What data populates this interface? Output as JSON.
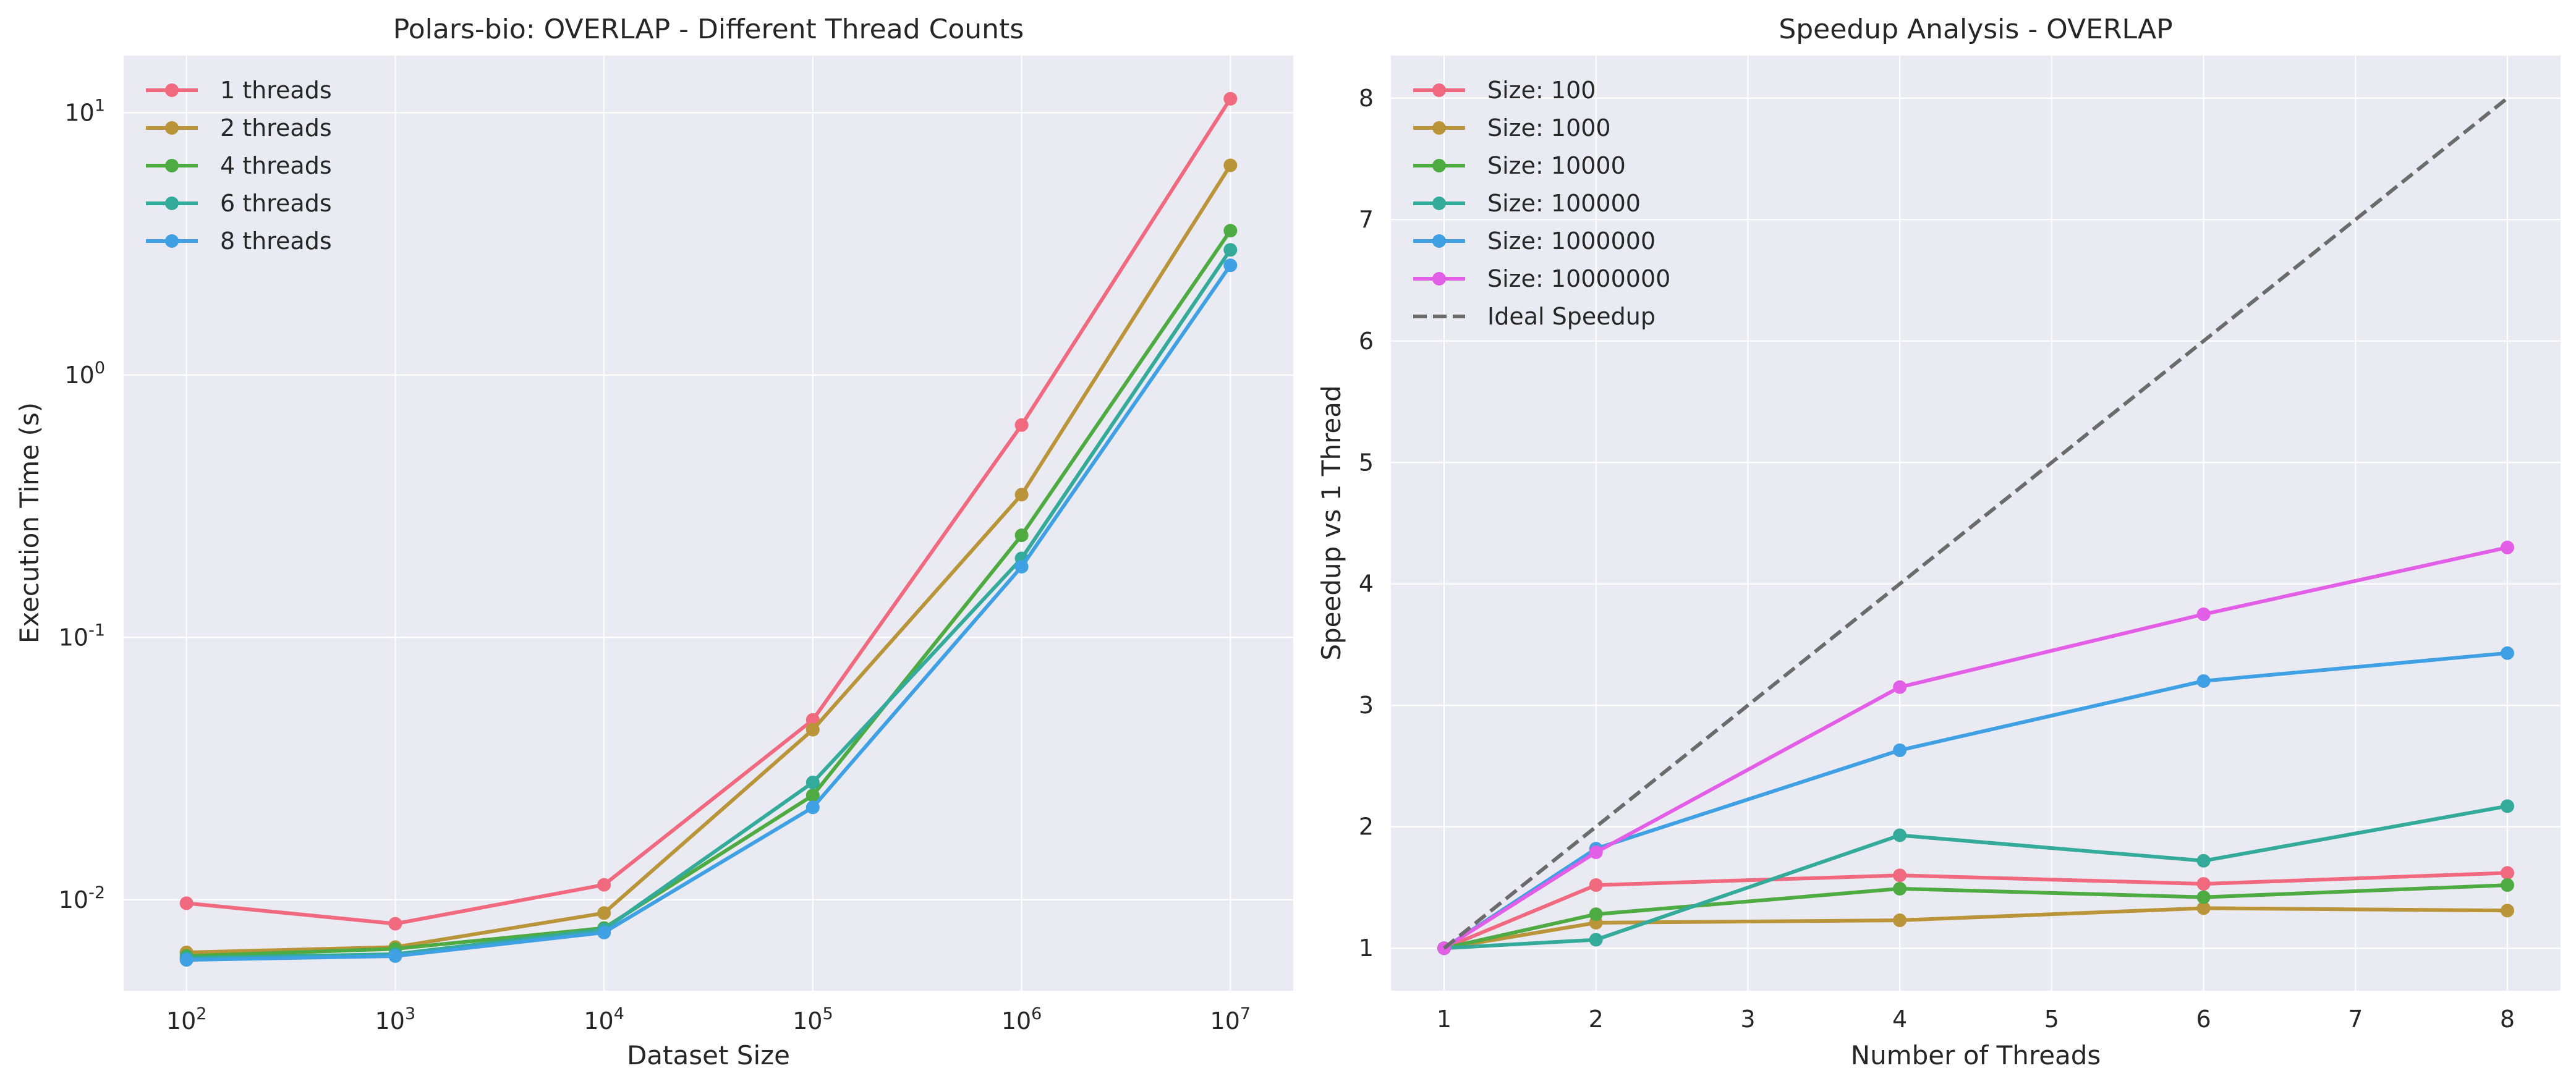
{
  "chart_data": [
    {
      "type": "line",
      "title": "Polars-bio: OVERLAP - Different Thread Counts",
      "xlabel": "Dataset Size",
      "ylabel": "Execution Time (s)",
      "xscale": "log",
      "yscale": "log",
      "xlim": [
        50,
        20000000
      ],
      "ylim": [
        0.0045,
        16.5
      ],
      "x": [
        100,
        1000,
        10000,
        100000,
        1000000,
        10000000
      ],
      "x_tick_labels": [
        "10^2",
        "10^3",
        "10^4",
        "10^5",
        "10^6",
        "10^7"
      ],
      "y_tick_labels": [
        "10^-2",
        "10^-1",
        "10^0",
        "10^1"
      ],
      "grid": true,
      "legend_position": "upper-left",
      "series": [
        {
          "name": "1 threads",
          "color": "#f0697f",
          "values": [
            0.0097,
            0.0081,
            0.0114,
            0.0485,
            0.645,
            11.3
          ]
        },
        {
          "name": "2 threads",
          "color": "#ba9438",
          "values": [
            0.0063,
            0.0066,
            0.0089,
            0.0445,
            0.35,
            6.3
          ]
        },
        {
          "name": "4 threads",
          "color": "#4eab42",
          "values": [
            0.0061,
            0.0065,
            0.0078,
            0.025,
            0.245,
            3.55
          ]
        },
        {
          "name": "6 threads",
          "color": "#33aa9a",
          "values": [
            0.006,
            0.0062,
            0.0077,
            0.028,
            0.2,
            3.0
          ]
        },
        {
          "name": "8 threads",
          "color": "#3fa0e4",
          "values": [
            0.0059,
            0.0061,
            0.0075,
            0.0225,
            0.186,
            2.62
          ]
        }
      ]
    },
    {
      "type": "line",
      "title": "Speedup Analysis - OVERLAP",
      "xlabel": "Number of Threads",
      "ylabel": "Speedup vs 1 Thread",
      "xlim": [
        0.65,
        8.35
      ],
      "ylim": [
        0.65,
        8.35
      ],
      "x": [
        1,
        2,
        4,
        6,
        8
      ],
      "x_ticks": [
        1,
        2,
        3,
        4,
        5,
        6,
        7,
        8
      ],
      "y_ticks": [
        1,
        2,
        3,
        4,
        5,
        6,
        7,
        8
      ],
      "grid": true,
      "legend_position": "upper-left",
      "series": [
        {
          "name": "Size: 100",
          "color": "#f0697f",
          "values": [
            1.0,
            1.52,
            1.6,
            1.53,
            1.62
          ]
        },
        {
          "name": "Size: 1000",
          "color": "#ba9438",
          "values": [
            1.0,
            1.21,
            1.23,
            1.33,
            1.31
          ]
        },
        {
          "name": "Size: 10000",
          "color": "#4eab42",
          "values": [
            1.0,
            1.28,
            1.49,
            1.42,
            1.52
          ]
        },
        {
          "name": "Size: 100000",
          "color": "#33aa9a",
          "values": [
            1.0,
            1.07,
            1.93,
            1.72,
            2.17
          ]
        },
        {
          "name": "Size: 1000000",
          "color": "#3fa0e4",
          "values": [
            1.0,
            1.82,
            2.63,
            3.2,
            3.43
          ]
        },
        {
          "name": "Size: 10000000",
          "color": "#e35ee6",
          "values": [
            1.0,
            1.79,
            3.15,
            3.75,
            4.3
          ]
        }
      ],
      "reference_line": {
        "name": "Ideal Speedup",
        "color": "#6b6b6b",
        "style": "dashed",
        "x": [
          1,
          8
        ],
        "y": [
          1,
          8
        ]
      }
    }
  ]
}
